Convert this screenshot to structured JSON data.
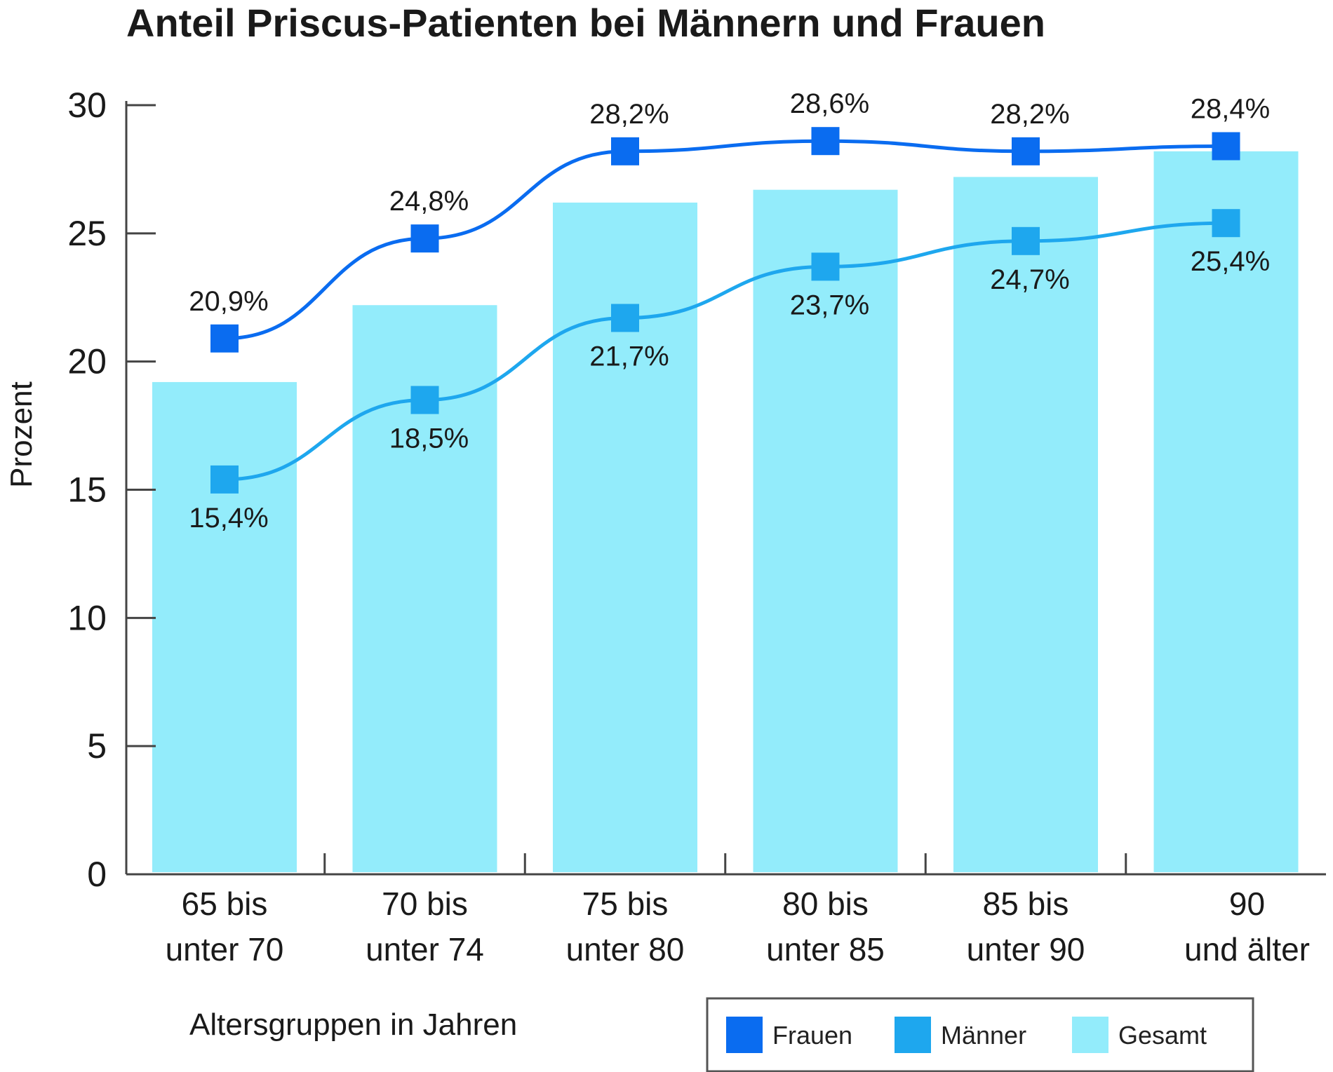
{
  "chart_data": {
    "type": "bar",
    "title": "Anteil Priscus-Patienten bei Männern und Frauen",
    "xlabel": "Altersgruppen in Jahren",
    "ylabel": "Prozent",
    "ylim": [
      0,
      30
    ],
    "yticks": [
      "0",
      "5",
      "10",
      "15",
      "20",
      "25",
      "30"
    ],
    "categories": [
      [
        "65 bis",
        "unter 70"
      ],
      [
        "70 bis",
        "unter 74"
      ],
      [
        "75 bis",
        "unter 80"
      ],
      [
        "80 bis",
        "unter 85"
      ],
      [
        "85 bis",
        "unter 90"
      ],
      [
        "90",
        "und älter"
      ]
    ],
    "series": [
      {
        "name": "Frauen",
        "kind": "line",
        "color": "#0a6cf0",
        "values": [
          20.9,
          24.8,
          28.2,
          28.6,
          28.2,
          28.4
        ],
        "labels": [
          "20,9%",
          "24,8%",
          "28,2%",
          "28,6%",
          "28,2%",
          "28,4%"
        ],
        "label_position": "above"
      },
      {
        "name": "Männer",
        "kind": "line",
        "color": "#1ea7ee",
        "values": [
          15.4,
          18.5,
          21.7,
          23.7,
          24.7,
          25.4
        ],
        "labels": [
          "15,4%",
          "18,5%",
          "21,7%",
          "23,7%",
          "24,7%",
          "25,4%"
        ],
        "label_position": "below"
      },
      {
        "name": "Gesamt",
        "kind": "bar",
        "color": "#93ecfb",
        "values": [
          19.2,
          22.2,
          26.2,
          26.7,
          27.2,
          28.2
        ]
      }
    ],
    "grid": false,
    "legend": "bottom-right"
  }
}
